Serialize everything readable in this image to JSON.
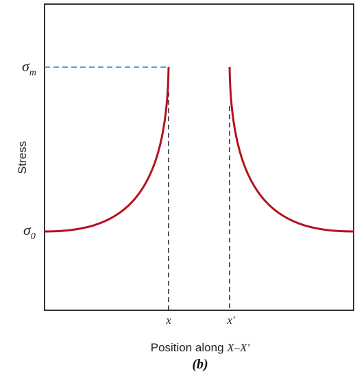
{
  "figure": {
    "ylabel": "Stress",
    "xlabel_prefix": "Position along ",
    "xlabel_var": "X–X′",
    "caption": "(b)",
    "y_ticks": {
      "sigma_m": {
        "base": "σ",
        "sub": "m"
      },
      "sigma_0": {
        "base": "σ",
        "sub": "0"
      }
    },
    "x_ticks": {
      "x": "x",
      "x_prime": "x′"
    },
    "colors": {
      "curve": "#b5121b",
      "dashed_ref": "#2e7bbf",
      "axis": "#000000"
    }
  }
}
